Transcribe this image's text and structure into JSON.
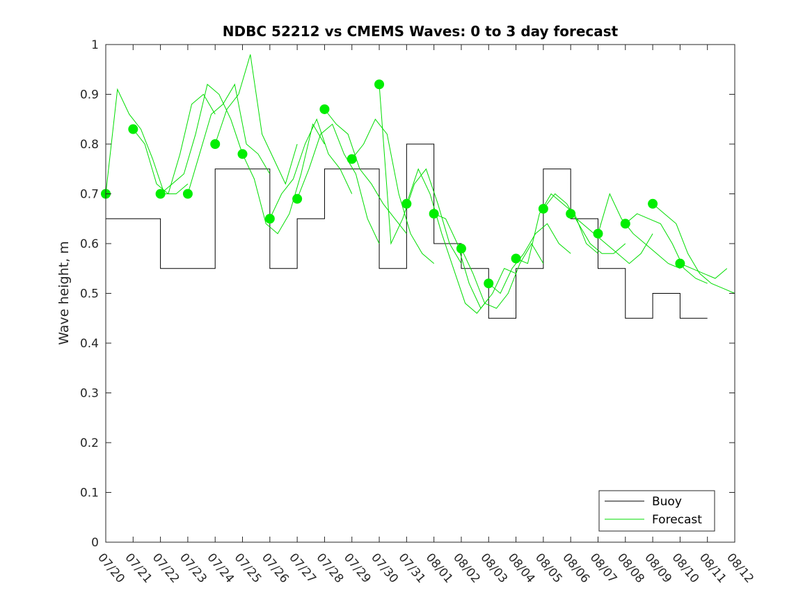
{
  "chart_data": {
    "type": "line",
    "title": "NDBC 52212 vs CMEMS Waves: 0 to 3 day forecast",
    "xlabel": "",
    "ylabel": "Wave height, m",
    "xlim": [
      "07/20",
      "08/12"
    ],
    "ylim": [
      0,
      1
    ],
    "x_tick_labels": [
      "07/20",
      "07/21",
      "07/22",
      "07/23",
      "07/24",
      "07/25",
      "07/26",
      "07/27",
      "07/28",
      "07/29",
      "07/30",
      "07/31",
      "08/01",
      "08/02",
      "08/03",
      "08/04",
      "08/05",
      "08/06",
      "08/07",
      "08/08",
      "08/09",
      "08/10",
      "08/11",
      "08/12"
    ],
    "y_tick_labels": [
      "0",
      "0.1",
      "0.2",
      "0.3",
      "0.4",
      "0.5",
      "0.6",
      "0.7",
      "0.8",
      "0.9",
      "1"
    ],
    "grid": false,
    "legend_position": "bottom-right",
    "legend": [
      {
        "label": "Buoy",
        "color": "#000000"
      },
      {
        "label": "Forecast",
        "color": "#00dd00"
      }
    ],
    "colors": {
      "buoy": "#000000",
      "forecast": "#00dd00",
      "marker": "#00ee00"
    },
    "buoy": {
      "x": [
        "07/20",
        "07/21",
        "07/22",
        "07/23",
        "07/24",
        "07/25",
        "07/26",
        "07/27",
        "07/28",
        "07/29",
        "07/30",
        "07/31",
        "08/01",
        "08/02",
        "08/03",
        "08/04",
        "08/05",
        "08/06",
        "08/07",
        "08/08",
        "08/09",
        "08/10",
        "08/11"
      ],
      "values": [
        0.65,
        0.65,
        0.55,
        0.55,
        0.75,
        0.75,
        0.55,
        0.65,
        0.75,
        0.75,
        0.55,
        0.8,
        0.6,
        0.55,
        0.45,
        0.55,
        0.75,
        0.65,
        0.55,
        0.45,
        0.5,
        0.45,
        0.45
      ]
    },
    "forecast_start_markers": {
      "x": [
        "07/20",
        "07/21",
        "07/22",
        "07/23",
        "07/24",
        "07/25",
        "07/26",
        "07/27",
        "07/28",
        "07/29",
        "07/30",
        "07/31",
        "08/01",
        "08/02",
        "08/03",
        "08/04",
        "08/05",
        "08/06",
        "08/07",
        "08/08",
        "08/09",
        "08/10"
      ],
      "values": [
        0.7,
        0.83,
        0.7,
        0.7,
        0.8,
        0.78,
        0.65,
        0.69,
        0.87,
        0.77,
        0.92,
        0.68,
        0.66,
        0.59,
        0.52,
        0.57,
        0.67,
        0.66,
        0.62,
        0.64,
        0.68,
        0.56
      ]
    },
    "forecast_series": [
      {
        "start": "07/20",
        "values": [
          0.7,
          0.91,
          0.86,
          0.83,
          0.77,
          0.7,
          0.7,
          0.72
        ]
      },
      {
        "start": "07/21",
        "values": [
          0.83,
          0.8,
          0.72,
          0.7,
          0.78,
          0.88,
          0.9,
          0.86
        ]
      },
      {
        "start": "07/22",
        "values": [
          0.7,
          0.72,
          0.74,
          0.82,
          0.92,
          0.9,
          0.85,
          0.78
        ]
      },
      {
        "start": "07/23",
        "values": [
          0.7,
          0.78,
          0.86,
          0.88,
          0.92,
          0.8,
          0.78,
          0.74
        ]
      },
      {
        "start": "07/24",
        "values": [
          0.8,
          0.87,
          0.9,
          0.98,
          0.82,
          0.77,
          0.72,
          0.8
        ]
      },
      {
        "start": "07/25",
        "values": [
          0.78,
          0.73,
          0.64,
          0.62,
          0.66,
          0.74,
          0.84,
          0.8
        ]
      },
      {
        "start": "07/26",
        "values": [
          0.65,
          0.7,
          0.73,
          0.8,
          0.85,
          0.78,
          0.75,
          0.7
        ]
      },
      {
        "start": "07/27",
        "values": [
          0.69,
          0.75,
          0.82,
          0.84,
          0.78,
          0.74,
          0.65,
          0.6
        ]
      },
      {
        "start": "07/28",
        "values": [
          0.87,
          0.84,
          0.82,
          0.75,
          0.72,
          0.68,
          0.65,
          0.62
        ]
      },
      {
        "start": "07/29",
        "values": [
          0.77,
          0.8,
          0.85,
          0.82,
          0.7,
          0.62,
          0.58,
          0.56
        ]
      },
      {
        "start": "07/30",
        "values": [
          0.92,
          0.6,
          0.65,
          0.72,
          0.75,
          0.68,
          0.6,
          0.56
        ]
      },
      {
        "start": "07/31",
        "values": [
          0.68,
          0.75,
          0.7,
          0.62,
          0.55,
          0.48,
          0.46,
          0.49
        ]
      },
      {
        "start": "08/01",
        "values": [
          0.66,
          0.65,
          0.6,
          0.52,
          0.47,
          0.5,
          0.55,
          0.54
        ]
      },
      {
        "start": "08/02",
        "values": [
          0.59,
          0.54,
          0.48,
          0.47,
          0.5,
          0.56,
          0.6,
          0.56
        ]
      },
      {
        "start": "08/03",
        "values": [
          0.52,
          0.5,
          0.55,
          0.58,
          0.62,
          0.64,
          0.6,
          0.58
        ]
      },
      {
        "start": "08/04",
        "values": [
          0.57,
          0.56,
          0.66,
          0.7,
          0.68,
          0.66,
          0.6,
          0.58
        ]
      },
      {
        "start": "08/05",
        "values": [
          0.67,
          0.7,
          0.68,
          0.64,
          0.6,
          0.58,
          0.58,
          0.6
        ]
      },
      {
        "start": "08/06",
        "values": [
          0.66,
          0.64,
          0.62,
          0.6,
          0.58,
          0.56,
          0.58,
          0.62
        ]
      },
      {
        "start": "08/07",
        "values": [
          0.62,
          0.7,
          0.65,
          0.62,
          0.6,
          0.58,
          0.56,
          0.55
        ]
      },
      {
        "start": "08/08",
        "values": [
          0.64,
          0.66,
          0.65,
          0.64,
          0.6,
          0.55,
          0.53,
          0.52
        ]
      },
      {
        "start": "08/09",
        "values": [
          0.68,
          0.66,
          0.64,
          0.58,
          0.54,
          0.52,
          0.51,
          0.5
        ]
      },
      {
        "start": "08/10",
        "values": [
          0.56,
          0.55,
          0.54,
          0.53,
          0.55
        ]
      }
    ]
  }
}
